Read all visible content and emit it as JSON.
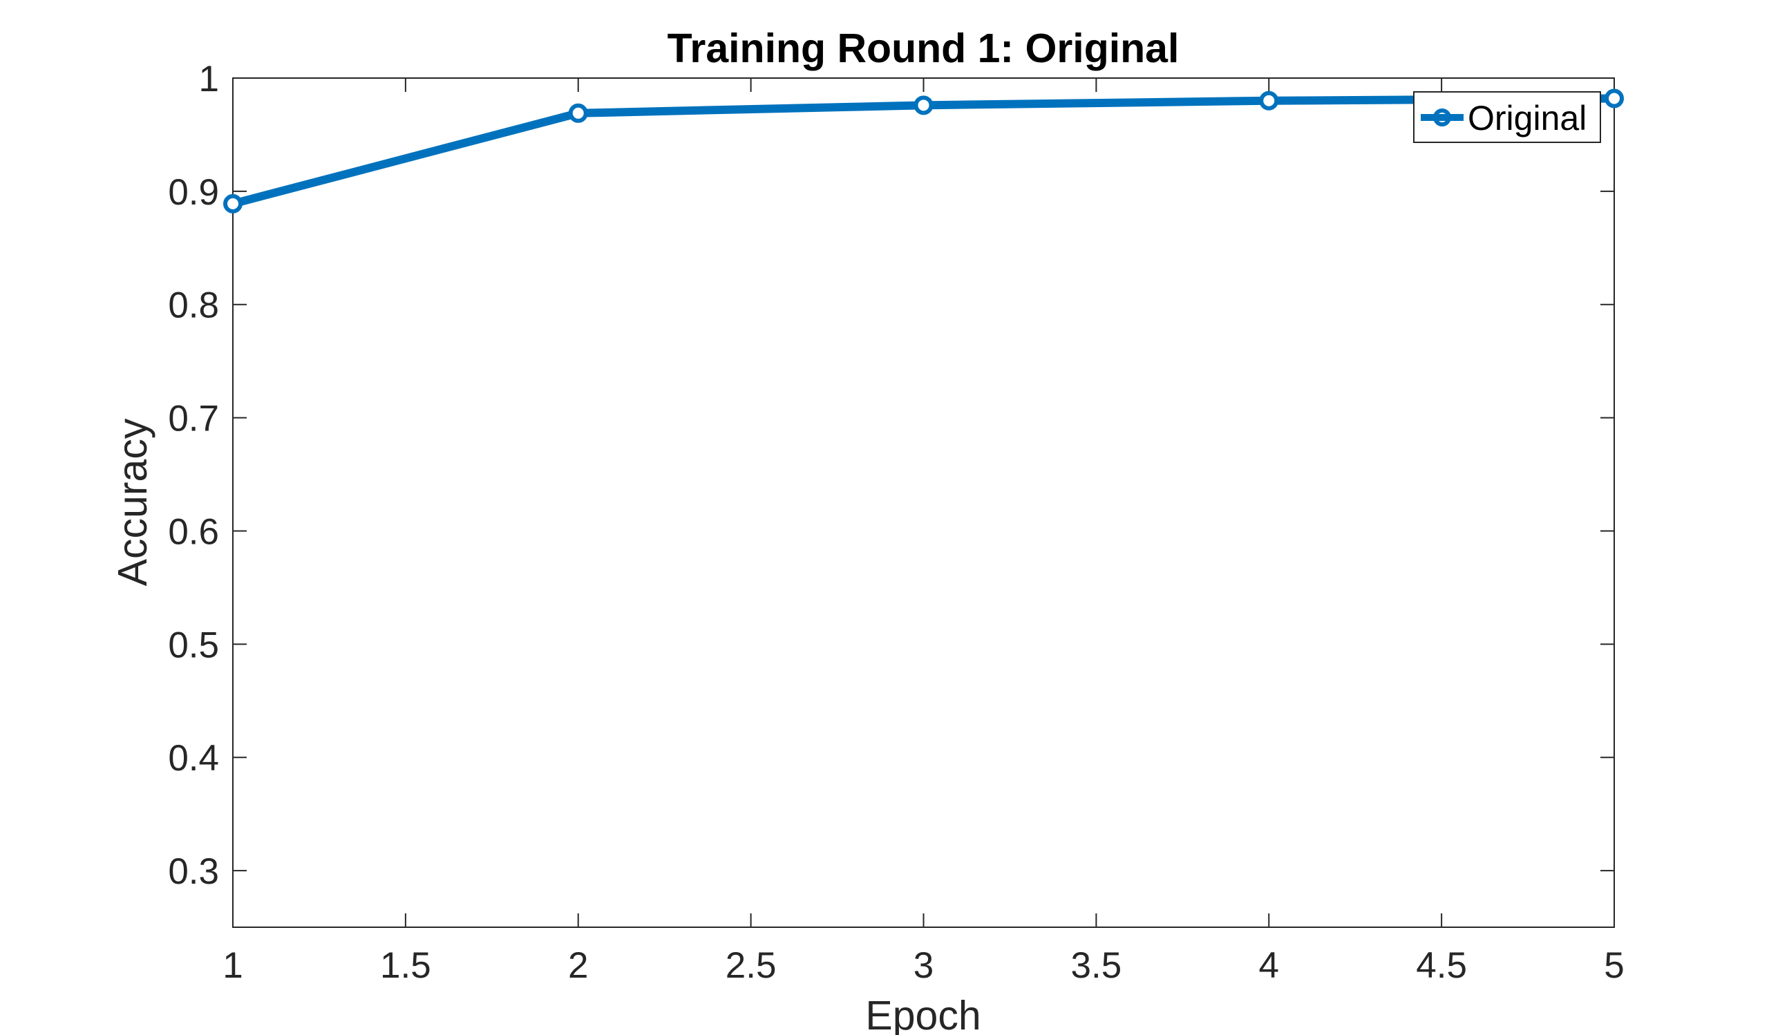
{
  "chart_data": {
    "type": "line",
    "title": "Training Round 1: Original",
    "xlabel": "Epoch",
    "ylabel": "Accuracy",
    "xlim": [
      1,
      5
    ],
    "ylim": [
      0.25,
      1
    ],
    "xticks": [
      1,
      1.5,
      2,
      2.5,
      3,
      3.5,
      4,
      4.5,
      5
    ],
    "xtick_labels": [
      "1",
      "1.5",
      "2",
      "2.5",
      "3",
      "3.5",
      "4",
      "4.5",
      "5"
    ],
    "yticks": [
      0.3,
      0.4,
      0.5,
      0.6,
      0.7,
      0.8,
      0.9,
      1
    ],
    "ytick_labels": [
      "0.3",
      "0.4",
      "0.5",
      "0.6",
      "0.7",
      "0.8",
      "0.9",
      "1"
    ],
    "grid": false,
    "legend_position": "top-right",
    "series": [
      {
        "name": "Original",
        "color": "#0072BD",
        "marker": "circle",
        "x": [
          1,
          2,
          3,
          4,
          5
        ],
        "y": [
          0.889,
          0.969,
          0.976,
          0.98,
          0.982
        ]
      }
    ]
  }
}
